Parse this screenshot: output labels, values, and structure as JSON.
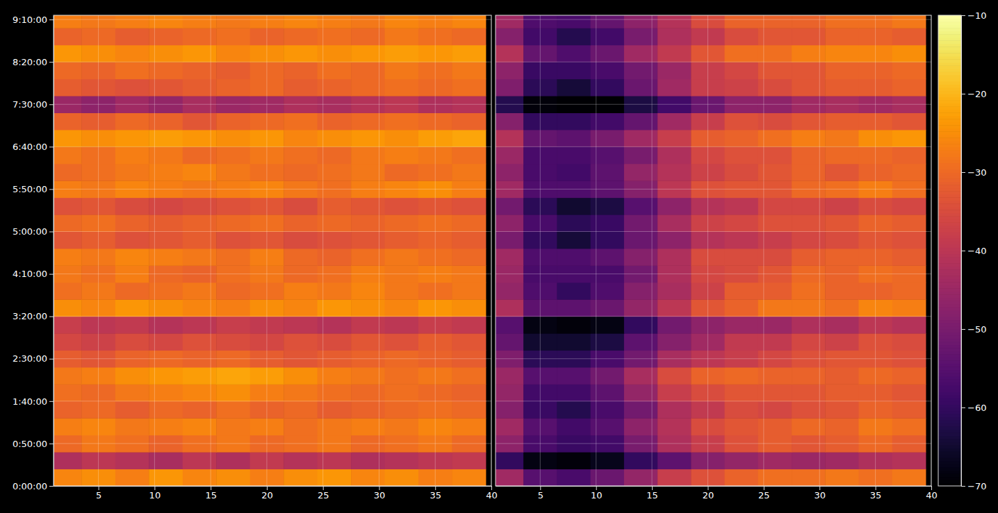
{
  "chart_data": [
    {
      "type": "heatmap",
      "grid": true,
      "xlim": [
        1,
        40
      ],
      "ylim": [
        0,
        33300
      ],
      "xticks": [
        5,
        10,
        15,
        20,
        25,
        30,
        35,
        40
      ],
      "yticks": [
        {
          "value": 0,
          "label": "0:00:00"
        },
        {
          "value": 3000,
          "label": "0:50:00"
        },
        {
          "value": 6000,
          "label": "1:40:00"
        },
        {
          "value": 9000,
          "label": "2:30:00"
        },
        {
          "value": 12000,
          "label": "3:20:00"
        },
        {
          "value": 15000,
          "label": "4:10:00"
        },
        {
          "value": 18000,
          "label": "5:00:00"
        },
        {
          "value": 21000,
          "label": "5:50:00"
        },
        {
          "value": 24000,
          "label": "6:40:00"
        },
        {
          "value": 27000,
          "label": "7:30:00"
        },
        {
          "value": 30000,
          "label": "8:20:00"
        },
        {
          "value": 33000,
          "label": "9:10:00"
        }
      ],
      "x": [
        2,
        5,
        8,
        11,
        14,
        17,
        20,
        23,
        26,
        29,
        32,
        35,
        38
      ],
      "y": [
        600,
        1800,
        3000,
        4200,
        5400,
        6600,
        7800,
        9000,
        10200,
        11400,
        12600,
        13800,
        15000,
        16200,
        17400,
        18600,
        19800,
        21000,
        22200,
        23400,
        24600,
        25800,
        27000,
        28200,
        29400,
        30600,
        31800,
        33000
      ],
      "z": [
        [
          -26,
          -25,
          -27,
          -24,
          -26,
          -25,
          -27,
          -25,
          -24,
          -26,
          -25,
          -27,
          -26
        ],
        [
          -42,
          -40,
          -41,
          -43,
          -40,
          -42,
          -39,
          -41,
          -40,
          -42,
          -41,
          -40,
          -39
        ],
        [
          -30,
          -28,
          -29,
          -31,
          -29,
          -28,
          -30,
          -29,
          -28,
          -30,
          -29,
          -28,
          -30
        ],
        [
          -27,
          -26,
          -28,
          -27,
          -26,
          -28,
          -27,
          -29,
          -28,
          -27,
          -28,
          -26,
          -27
        ],
        [
          -31,
          -30,
          -32,
          -30,
          -31,
          -29,
          -31,
          -30,
          -32,
          -31,
          -30,
          -29,
          -30
        ],
        [
          -29,
          -30,
          -28,
          -27,
          -26,
          -25,
          -27,
          -28,
          -29,
          -30,
          -29,
          -30,
          -31
        ],
        [
          -28,
          -27,
          -25,
          -24,
          -23,
          -22,
          -23,
          -25,
          -27,
          -28,
          -29,
          -28,
          -29
        ],
        [
          -32,
          -33,
          -31,
          -30,
          -31,
          -30,
          -32,
          -33,
          -32,
          -31,
          -30,
          -31,
          -32
        ],
        [
          -36,
          -37,
          -35,
          -36,
          -34,
          -35,
          -36,
          -34,
          -35,
          -33,
          -34,
          -32,
          -33
        ],
        [
          -38,
          -40,
          -39,
          -41,
          -40,
          -38,
          -39,
          -40,
          -41,
          -39,
          -40,
          -38,
          -39
        ],
        [
          -25,
          -26,
          -24,
          -25,
          -26,
          -27,
          -25,
          -26,
          -24,
          -25,
          -26,
          -24,
          -25
        ],
        [
          -29,
          -28,
          -30,
          -29,
          -28,
          -30,
          -29,
          -27,
          -28,
          -26,
          -28,
          -29,
          -28
        ],
        [
          -28,
          -29,
          -27,
          -30,
          -31,
          -29,
          -28,
          -30,
          -29,
          -27,
          -28,
          -27,
          -28
        ],
        [
          -27,
          -28,
          -26,
          -27,
          -28,
          -29,
          -27,
          -30,
          -31,
          -29,
          -28,
          -29,
          -30
        ],
        [
          -33,
          -32,
          -34,
          -33,
          -32,
          -34,
          -33,
          -35,
          -34,
          -33,
          -32,
          -31,
          -32
        ],
        [
          -30,
          -29,
          -31,
          -32,
          -31,
          -30,
          -29,
          -31,
          -30,
          -31,
          -30,
          -29,
          -30
        ],
        [
          -34,
          -33,
          -35,
          -36,
          -35,
          -34,
          -33,
          -35,
          -32,
          -33,
          -34,
          -33,
          -34
        ],
        [
          -27,
          -28,
          -26,
          -27,
          -28,
          -27,
          -26,
          -28,
          -29,
          -27,
          -26,
          -25,
          -27
        ],
        [
          -30,
          -29,
          -28,
          -27,
          -26,
          -28,
          -29,
          -30,
          -29,
          -28,
          -30,
          -29,
          -28
        ],
        [
          -28,
          -29,
          -27,
          -28,
          -30,
          -29,
          -28,
          -29,
          -30,
          -28,
          -27,
          -28,
          -29
        ],
        [
          -24,
          -25,
          -24,
          -23,
          -24,
          -25,
          -24,
          -26,
          -25,
          -24,
          -25,
          -23,
          -22
        ],
        [
          -31,
          -32,
          -30,
          -31,
          -33,
          -31,
          -30,
          -29,
          -31,
          -30,
          -29,
          -30,
          -31
        ],
        [
          -45,
          -47,
          -44,
          -46,
          -43,
          -45,
          -44,
          -42,
          -43,
          -41,
          -40,
          -42,
          -41
        ],
        [
          -32,
          -33,
          -34,
          -33,
          -32,
          -31,
          -30,
          -32,
          -31,
          -30,
          -29,
          -30,
          -29
        ],
        [
          -30,
          -31,
          -29,
          -30,
          -31,
          -32,
          -30,
          -31,
          -29,
          -30,
          -28,
          -29,
          -28
        ],
        [
          -24,
          -25,
          -26,
          -25,
          -24,
          -26,
          -25,
          -24,
          -25,
          -24,
          -23,
          -24,
          -23
        ],
        [
          -31,
          -30,
          -32,
          -31,
          -30,
          -29,
          -31,
          -30,
          -29,
          -30,
          -28,
          -29,
          -30
        ],
        [
          -27,
          -28,
          -27,
          -26,
          -27,
          -28,
          -27,
          -26,
          -27,
          -28,
          -26,
          -27,
          -26
        ]
      ]
    },
    {
      "type": "heatmap",
      "grid": true,
      "tick_labels": "x",
      "xlim": [
        1,
        40
      ],
      "ylim": [
        0,
        33300
      ],
      "xticks": [
        5,
        10,
        15,
        20,
        25,
        30,
        35,
        40
      ],
      "yticks": [
        0,
        3000,
        6000,
        9000,
        12000,
        15000,
        18000,
        21000,
        24000,
        27000,
        30000,
        33000
      ],
      "x": [
        2,
        5,
        8,
        11,
        14,
        17,
        20,
        23,
        26,
        29,
        32,
        35,
        38
      ],
      "y": [
        600,
        1800,
        3000,
        4200,
        5400,
        6600,
        7800,
        9000,
        10200,
        11400,
        12600,
        13800,
        15000,
        16200,
        17400,
        18600,
        19800,
        21000,
        22200,
        23400,
        24600,
        25800,
        27000,
        28200,
        29400,
        30600,
        31800,
        33000
      ],
      "z": [
        [
          -44,
          -55,
          -57,
          -52,
          -46,
          -38,
          -34,
          -31,
          -29,
          -29,
          -28,
          -29,
          -28
        ],
        [
          -60,
          -68,
          -69,
          -67,
          -60,
          -54,
          -48,
          -46,
          -44,
          -45,
          -44,
          -42,
          -41
        ],
        [
          -47,
          -57,
          -59,
          -58,
          -50,
          -42,
          -38,
          -34,
          -32,
          -33,
          -32,
          -30,
          -32
        ],
        [
          -44,
          -55,
          -58,
          -55,
          -47,
          -41,
          -35,
          -33,
          -32,
          -30,
          -31,
          -28,
          -29
        ],
        [
          -48,
          -59,
          -62,
          -57,
          -51,
          -42,
          -39,
          -35,
          -36,
          -34,
          -33,
          -31,
          -32
        ],
        [
          -46,
          -58,
          -58,
          -54,
          -46,
          -38,
          -35,
          -33,
          -33,
          -33,
          -32,
          -32,
          -33
        ],
        [
          -45,
          -55,
          -55,
          -51,
          -43,
          -35,
          -31,
          -30,
          -31,
          -31,
          -32,
          -30,
          -31
        ],
        [
          -49,
          -61,
          -61,
          -57,
          -51,
          -43,
          -40,
          -38,
          -36,
          -34,
          -33,
          -33,
          -34
        ],
        [
          -53,
          -65,
          -65,
          -63,
          -54,
          -48,
          -44,
          -39,
          -39,
          -36,
          -37,
          -34,
          -35
        ],
        [
          -55,
          -68,
          -69,
          -68,
          -60,
          -51,
          -47,
          -45,
          -45,
          -42,
          -43,
          -40,
          -41
        ],
        [
          -42,
          -54,
          -54,
          -52,
          -46,
          -40,
          -33,
          -31,
          -28,
          -28,
          -29,
          -26,
          -27
        ],
        [
          -46,
          -56,
          -60,
          -56,
          -48,
          -43,
          -37,
          -32,
          -32,
          -29,
          -31,
          -31,
          -30
        ],
        [
          -45,
          -57,
          -57,
          -57,
          -51,
          -42,
          -36,
          -35,
          -33,
          -30,
          -31,
          -29,
          -30
        ],
        [
          -44,
          -56,
          -56,
          -54,
          -48,
          -42,
          -35,
          -35,
          -35,
          -32,
          -31,
          -31,
          -32
        ],
        [
          -50,
          -60,
          -64,
          -60,
          -52,
          -47,
          -41,
          -40,
          -38,
          -36,
          -35,
          -33,
          -34
        ],
        [
          -47,
          -57,
          -61,
          -59,
          -51,
          -43,
          -37,
          -36,
          -34,
          -34,
          -33,
          -31,
          -32
        ],
        [
          -51,
          -61,
          -65,
          -63,
          -55,
          -47,
          -41,
          -40,
          -36,
          -36,
          -37,
          -35,
          -36
        ],
        [
          -44,
          -56,
          -56,
          -54,
          -48,
          -40,
          -34,
          -33,
          -33,
          -30,
          -29,
          -27,
          -29
        ],
        [
          -47,
          -57,
          -58,
          -54,
          -46,
          -41,
          -37,
          -35,
          -33,
          -31,
          -33,
          -31,
          -30
        ],
        [
          -45,
          -57,
          -57,
          -55,
          -50,
          -42,
          -36,
          -34,
          -34,
          -31,
          -30,
          -30,
          -31
        ],
        [
          -41,
          -53,
          -54,
          -50,
          -44,
          -38,
          -32,
          -31,
          -29,
          -27,
          -28,
          -25,
          -24
        ],
        [
          -48,
          -60,
          -60,
          -58,
          -53,
          -44,
          -38,
          -34,
          -35,
          -33,
          -32,
          -32,
          -33
        ],
        [
          -62,
          -69,
          -70,
          -70,
          -63,
          -58,
          -52,
          -47,
          -47,
          -44,
          -43,
          -44,
          -43
        ],
        [
          -49,
          -61,
          -64,
          -60,
          -52,
          -44,
          -38,
          -37,
          -35,
          -33,
          -32,
          -32,
          -31
        ],
        [
          -47,
          -59,
          -59,
          -57,
          -51,
          -45,
          -38,
          -36,
          -33,
          -33,
          -31,
          -31,
          -30
        ],
        [
          -41,
          -53,
          -56,
          -52,
          -44,
          -39,
          -33,
          -29,
          -29,
          -27,
          -26,
          -26,
          -25
        ],
        [
          -48,
          -58,
          -62,
          -58,
          -50,
          -42,
          -39,
          -35,
          -33,
          -33,
          -31,
          -31,
          -32
        ],
        [
          -44,
          -56,
          -57,
          -53,
          -47,
          -41,
          -35,
          -31,
          -31,
          -31,
          -29,
          -29,
          -28
        ]
      ],
      "colorbar": {
        "range": [
          -70,
          -10
        ],
        "ticks": [
          {
            "value": -70,
            "label": "−70"
          },
          {
            "value": -60,
            "label": "−60"
          },
          {
            "value": -50,
            "label": "−50"
          },
          {
            "value": -40,
            "label": "−40"
          },
          {
            "value": -30,
            "label": "−30"
          },
          {
            "value": -20,
            "label": "−20"
          },
          {
            "value": -10,
            "label": "−10"
          }
        ]
      }
    }
  ]
}
